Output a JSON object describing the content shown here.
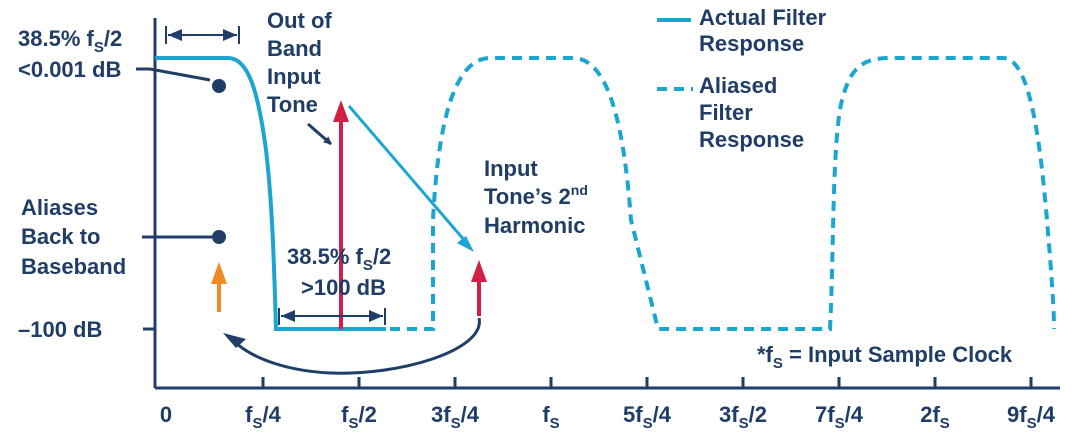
{
  "colors": {
    "navy": "#1f3d66",
    "filter_cyan": "#1aa6d1",
    "tone_red": "#d21f45",
    "alias_orange": "#f08a24"
  },
  "icons": [
    "double-headed-arrow-icon",
    "curved-arrow-icon",
    "dot-marker-icon"
  ],
  "passband_annotation": {
    "line1": "38.5% f",
    "line1_sub": "S",
    "line1_tail": "/2",
    "line2": "<0.001 dB"
  },
  "out_of_band": {
    "line1": "Out of",
    "line2": "Band",
    "line3": "Input",
    "line4": "Tone"
  },
  "harmonic": {
    "line1": "Input",
    "line2": "Tone’s 2",
    "line2_sup": "nd",
    "line3": "Harmonic"
  },
  "aliases": {
    "line1": "Aliases",
    "line2": "Back to",
    "line3": "Baseband"
  },
  "stopband_annotation": {
    "line1": "38.5% f",
    "line1_sub": "S",
    "line1_tail": "/2",
    "line2": ">100 dB"
  },
  "legend": {
    "actual_line1": "Actual Filter",
    "actual_line2": "Response",
    "aliased_line1": "Aliased",
    "aliased_line2": "Filter",
    "aliased_line3": "Response"
  },
  "y_label": "–100 dB",
  "footnote": {
    "prefix": "*f",
    "sub": "S",
    "tail": " = Input Sample Clock"
  },
  "x_ticks": [
    {
      "main": "0",
      "sub": "",
      "tail": ""
    },
    {
      "main": "f",
      "sub": "S",
      "tail": "/4"
    },
    {
      "main": "f",
      "sub": "S",
      "tail": "/2"
    },
    {
      "main": "3f",
      "sub": "S",
      "tail": "/4"
    },
    {
      "main": "f",
      "sub": "S",
      "tail": ""
    },
    {
      "main": "5f",
      "sub": "S",
      "tail": "/4"
    },
    {
      "main": "3f",
      "sub": "S",
      "tail": "/2"
    },
    {
      "main": "7f",
      "sub": "S",
      "tail": "/4"
    },
    {
      "main": "2f",
      "sub": "S",
      "tail": ""
    },
    {
      "main": "9f",
      "sub": "S",
      "tail": "/4"
    }
  ]
}
